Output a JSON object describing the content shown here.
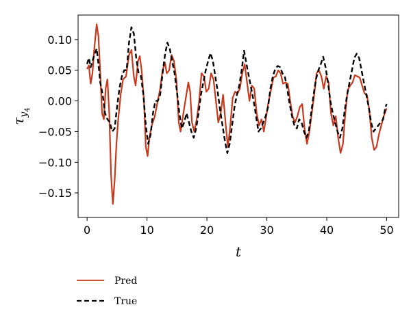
{
  "chart_data": {
    "type": "line",
    "title": "",
    "xlabel": "t",
    "ylabel": {
      "base": "τ",
      "sub": "y",
      "subsub": "4"
    },
    "xlim": [
      -1.5,
      52
    ],
    "ylim": [
      -0.19,
      0.14
    ],
    "xticks": [
      0,
      10,
      20,
      30,
      40,
      50
    ],
    "yticks": [
      0.1,
      0.05,
      0.0,
      -0.05,
      -0.1,
      -0.15
    ],
    "xtick_labels": [
      "0",
      "10",
      "20",
      "30",
      "40",
      "50"
    ],
    "ytick_labels": [
      "0.10",
      "0.05",
      "0.00",
      "−0.05",
      "−0.10",
      "−0.15"
    ],
    "grid": false,
    "legend_position": "below",
    "series": [
      {
        "name": "Pred",
        "color": "#c8391d",
        "style": "solid",
        "points": [
          [
            0,
            0.052
          ],
          [
            0.3,
            0.058
          ],
          [
            0.6,
            0.028
          ],
          [
            0.9,
            0.045
          ],
          [
            1.2,
            0.085
          ],
          [
            1.6,
            0.125
          ],
          [
            1.9,
            0.105
          ],
          [
            2.2,
            0.045
          ],
          [
            2.5,
            -0.02
          ],
          [
            2.8,
            -0.03
          ],
          [
            3.1,
            0.02
          ],
          [
            3.4,
            0.035
          ],
          [
            3.7,
            -0.02
          ],
          [
            4.0,
            -0.12
          ],
          [
            4.3,
            -0.168
          ],
          [
            4.6,
            -0.13
          ],
          [
            4.9,
            -0.07
          ],
          [
            5.2,
            -0.03
          ],
          [
            5.6,
            0.01
          ],
          [
            6.0,
            0.035
          ],
          [
            6.5,
            0.04
          ],
          [
            7.0,
            0.075
          ],
          [
            7.4,
            0.083
          ],
          [
            7.8,
            0.04
          ],
          [
            8.1,
            0.025
          ],
          [
            8.5,
            0.065
          ],
          [
            8.8,
            0.073
          ],
          [
            9.1,
            0.05
          ],
          [
            9.5,
            0.0
          ],
          [
            9.8,
            -0.075
          ],
          [
            10.1,
            -0.09
          ],
          [
            10.4,
            -0.06
          ],
          [
            10.8,
            -0.04
          ],
          [
            11.3,
            -0.025
          ],
          [
            11.8,
            0.0
          ],
          [
            12.2,
            0.02
          ],
          [
            12.6,
            0.05
          ],
          [
            13.0,
            0.062
          ],
          [
            13.3,
            0.045
          ],
          [
            13.7,
            0.05
          ],
          [
            14.1,
            0.075
          ],
          [
            14.5,
            0.065
          ],
          [
            14.9,
            0.035
          ],
          [
            15.3,
            -0.035
          ],
          [
            15.6,
            -0.05
          ],
          [
            16.0,
            -0.025
          ],
          [
            16.4,
            0.0
          ],
          [
            16.9,
            0.03
          ],
          [
            17.2,
            0.015
          ],
          [
            17.5,
            -0.035
          ],
          [
            17.9,
            -0.05
          ],
          [
            18.3,
            -0.03
          ],
          [
            18.7,
            0.0
          ],
          [
            19.1,
            0.045
          ],
          [
            19.5,
            0.04
          ],
          [
            19.9,
            0.015
          ],
          [
            20.3,
            0.02
          ],
          [
            20.7,
            0.045
          ],
          [
            21.1,
            0.035
          ],
          [
            21.5,
            0.0
          ],
          [
            21.9,
            -0.035
          ],
          [
            22.3,
            -0.02
          ],
          [
            22.7,
            0.01
          ],
          [
            23.1,
            -0.035
          ],
          [
            23.5,
            -0.075
          ],
          [
            23.9,
            -0.04
          ],
          [
            24.3,
            0.005
          ],
          [
            24.7,
            0.015
          ],
          [
            25.1,
            0.012
          ],
          [
            25.5,
            0.02
          ],
          [
            25.9,
            0.045
          ],
          [
            26.3,
            0.06
          ],
          [
            26.7,
            0.03
          ],
          [
            27.1,
            0.0
          ],
          [
            27.5,
            0.025
          ],
          [
            27.9,
            0.02
          ],
          [
            28.3,
            -0.02
          ],
          [
            28.7,
            -0.04
          ],
          [
            29.1,
            -0.03
          ],
          [
            29.5,
            -0.05
          ],
          [
            29.9,
            -0.025
          ],
          [
            30.3,
            0.0
          ],
          [
            30.7,
            0.018
          ],
          [
            31.1,
            0.038
          ],
          [
            31.5,
            0.04
          ],
          [
            31.9,
            0.05
          ],
          [
            32.3,
            0.045
          ],
          [
            32.7,
            0.028
          ],
          [
            33.1,
            0.03
          ],
          [
            33.5,
            0.028
          ],
          [
            33.9,
            0.0
          ],
          [
            34.3,
            -0.025
          ],
          [
            34.7,
            -0.035
          ],
          [
            35.1,
            -0.025
          ],
          [
            35.5,
            -0.01
          ],
          [
            35.9,
            -0.005
          ],
          [
            36.3,
            -0.045
          ],
          [
            36.7,
            -0.07
          ],
          [
            37.1,
            -0.05
          ],
          [
            37.5,
            -0.02
          ],
          [
            37.9,
            0.01
          ],
          [
            38.3,
            0.045
          ],
          [
            38.7,
            0.05
          ],
          [
            39.1,
            0.04
          ],
          [
            39.5,
            0.02
          ],
          [
            39.9,
            0.04
          ],
          [
            40.3,
            0.03
          ],
          [
            40.7,
            -0.02
          ],
          [
            41.1,
            -0.04
          ],
          [
            41.5,
            -0.025
          ],
          [
            41.9,
            -0.06
          ],
          [
            42.3,
            -0.085
          ],
          [
            42.7,
            -0.07
          ],
          [
            43.1,
            -0.02
          ],
          [
            43.5,
            0.018
          ],
          [
            43.9,
            0.025
          ],
          [
            44.3,
            0.03
          ],
          [
            44.7,
            0.042
          ],
          [
            45.1,
            0.04
          ],
          [
            45.5,
            0.038
          ],
          [
            45.9,
            0.025
          ],
          [
            46.3,
            0.012
          ],
          [
            46.7,
            0.01
          ],
          [
            47.1,
            -0.015
          ],
          [
            47.5,
            -0.06
          ],
          [
            47.9,
            -0.08
          ],
          [
            48.3,
            -0.075
          ],
          [
            48.7,
            -0.055
          ],
          [
            49.1,
            -0.04
          ],
          [
            49.5,
            -0.025
          ],
          [
            50.0,
            -0.012
          ]
        ]
      },
      {
        "name": "True",
        "color": "#000000",
        "style": "dashed",
        "points": [
          [
            0,
            0.06
          ],
          [
            0.3,
            0.07
          ],
          [
            0.6,
            0.055
          ],
          [
            0.9,
            0.065
          ],
          [
            1.2,
            0.075
          ],
          [
            1.6,
            0.085
          ],
          [
            1.9,
            0.06
          ],
          [
            2.2,
            0.03
          ],
          [
            2.6,
            0.01
          ],
          [
            3.0,
            -0.02
          ],
          [
            3.4,
            -0.03
          ],
          [
            3.8,
            -0.035
          ],
          [
            4.2,
            -0.05
          ],
          [
            4.6,
            -0.045
          ],
          [
            5.0,
            -0.01
          ],
          [
            5.4,
            0.02
          ],
          [
            5.8,
            0.04
          ],
          [
            6.2,
            0.05
          ],
          [
            6.6,
            0.05
          ],
          [
            7.0,
            0.095
          ],
          [
            7.4,
            0.12
          ],
          [
            7.8,
            0.11
          ],
          [
            8.2,
            0.07
          ],
          [
            8.6,
            0.045
          ],
          [
            9.0,
            0.04
          ],
          [
            9.4,
            0.01
          ],
          [
            9.8,
            -0.04
          ],
          [
            10.2,
            -0.07
          ],
          [
            10.6,
            -0.055
          ],
          [
            11.0,
            -0.02
          ],
          [
            11.4,
            0.0
          ],
          [
            11.8,
            0.0
          ],
          [
            12.2,
            0.01
          ],
          [
            12.6,
            0.045
          ],
          [
            13.0,
            0.075
          ],
          [
            13.4,
            0.095
          ],
          [
            13.8,
            0.085
          ],
          [
            14.2,
            0.065
          ],
          [
            14.6,
            0.045
          ],
          [
            15.0,
            0.015
          ],
          [
            15.4,
            -0.02
          ],
          [
            15.8,
            -0.045
          ],
          [
            16.2,
            -0.035
          ],
          [
            16.6,
            -0.02
          ],
          [
            17.0,
            -0.035
          ],
          [
            17.4,
            -0.05
          ],
          [
            17.8,
            -0.06
          ],
          [
            18.2,
            -0.045
          ],
          [
            18.6,
            -0.02
          ],
          [
            19.0,
            0.01
          ],
          [
            19.4,
            0.03
          ],
          [
            19.8,
            0.05
          ],
          [
            20.2,
            0.065
          ],
          [
            20.6,
            0.078
          ],
          [
            21.0,
            0.065
          ],
          [
            21.4,
            0.04
          ],
          [
            21.8,
            0.015
          ],
          [
            22.2,
            -0.015
          ],
          [
            22.6,
            -0.04
          ],
          [
            23.0,
            -0.065
          ],
          [
            23.4,
            -0.085
          ],
          [
            23.8,
            -0.07
          ],
          [
            24.2,
            -0.04
          ],
          [
            24.6,
            -0.01
          ],
          [
            25.0,
            0.01
          ],
          [
            25.4,
            0.025
          ],
          [
            25.8,
            0.05
          ],
          [
            26.2,
            0.082
          ],
          [
            26.6,
            0.06
          ],
          [
            27.0,
            0.04
          ],
          [
            27.4,
            0.02
          ],
          [
            27.8,
            0.0
          ],
          [
            28.2,
            -0.025
          ],
          [
            28.6,
            -0.05
          ],
          [
            29.0,
            -0.045
          ],
          [
            29.4,
            -0.035
          ],
          [
            29.8,
            -0.025
          ],
          [
            30.2,
            -0.01
          ],
          [
            30.6,
            0.02
          ],
          [
            31.0,
            0.04
          ],
          [
            31.4,
            0.052
          ],
          [
            31.8,
            0.057
          ],
          [
            32.2,
            0.055
          ],
          [
            32.6,
            0.045
          ],
          [
            33.0,
            0.04
          ],
          [
            33.4,
            0.02
          ],
          [
            33.8,
            -0.005
          ],
          [
            34.2,
            -0.025
          ],
          [
            34.6,
            -0.04
          ],
          [
            35.0,
            -0.045
          ],
          [
            35.4,
            -0.03
          ],
          [
            35.8,
            -0.035
          ],
          [
            36.2,
            -0.05
          ],
          [
            36.6,
            -0.06
          ],
          [
            37.0,
            -0.05
          ],
          [
            37.4,
            -0.02
          ],
          [
            37.8,
            0.01
          ],
          [
            38.2,
            0.035
          ],
          [
            38.6,
            0.05
          ],
          [
            39.0,
            0.06
          ],
          [
            39.4,
            0.072
          ],
          [
            39.8,
            0.055
          ],
          [
            40.2,
            0.03
          ],
          [
            40.6,
            0.0
          ],
          [
            41.0,
            -0.02
          ],
          [
            41.4,
            -0.035
          ],
          [
            41.8,
            -0.05
          ],
          [
            42.2,
            -0.06
          ],
          [
            42.6,
            -0.045
          ],
          [
            43.0,
            -0.015
          ],
          [
            43.4,
            0.01
          ],
          [
            43.8,
            0.03
          ],
          [
            44.2,
            0.05
          ],
          [
            44.6,
            0.07
          ],
          [
            45.0,
            0.077
          ],
          [
            45.4,
            0.07
          ],
          [
            45.8,
            0.05
          ],
          [
            46.2,
            0.03
          ],
          [
            46.6,
            0.01
          ],
          [
            47.0,
            -0.01
          ],
          [
            47.4,
            -0.035
          ],
          [
            47.8,
            -0.05
          ],
          [
            48.2,
            -0.045
          ],
          [
            48.6,
            -0.04
          ],
          [
            49.0,
            -0.035
          ],
          [
            49.4,
            -0.03
          ],
          [
            49.8,
            -0.01
          ],
          [
            50.0,
            -0.005
          ]
        ]
      }
    ]
  }
}
